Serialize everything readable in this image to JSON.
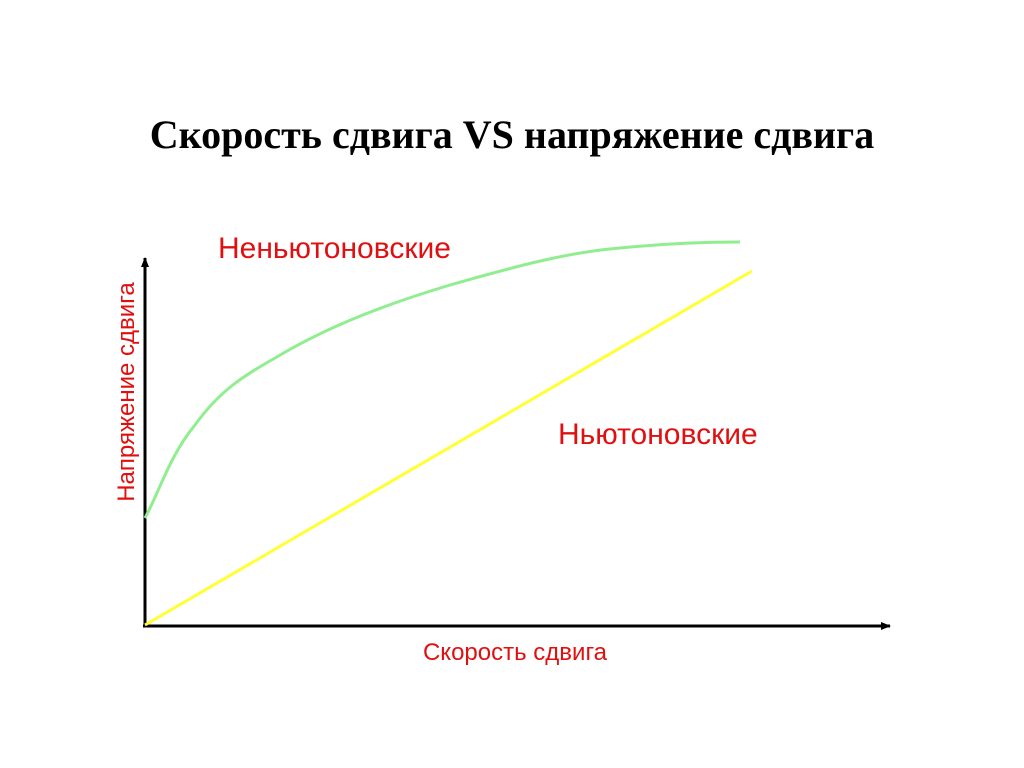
{
  "title": "Скорость сдвига VS напряжение сдвига",
  "axes": {
    "x_label": "Скорость сдвига",
    "y_label": "Напряжение сдвига"
  },
  "curves": {
    "non_newtonian_label": "Неньютоновские",
    "newtonian_label": "Ньютоновские"
  }
}
